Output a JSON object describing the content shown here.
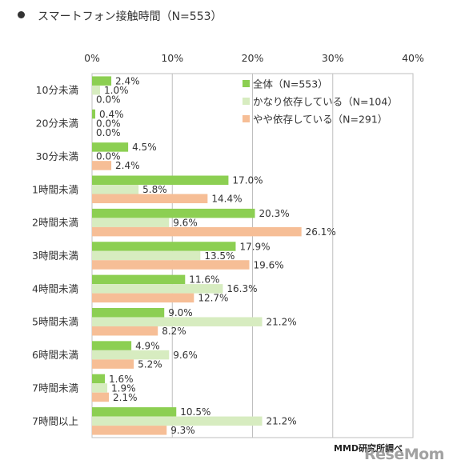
{
  "title": "スマートフォン接触時間（N=553）",
  "source": "MMD研究所調べ",
  "watermark": "ReseMom",
  "chart_data": {
    "type": "bar",
    "orientation": "horizontal",
    "title": "スマートフォン接触時間（N=553）",
    "xlim": [
      0,
      40
    ],
    "xticks": [
      "0%",
      "10%",
      "20%",
      "30%",
      "40%"
    ],
    "grid": true,
    "legend_position": "top-right",
    "categories": [
      "10分未満",
      "20分未満",
      "30分未満",
      "1時間未満",
      "2時間未満",
      "3時間未満",
      "4時間未満",
      "5時間未満",
      "6時間未満",
      "7時間未満",
      "7時間以上"
    ],
    "series": [
      {
        "name": "全体（N=553）",
        "color": "#8ccf52",
        "values": [
          2.4,
          0.4,
          4.5,
          17.0,
          20.3,
          17.9,
          11.6,
          9.0,
          4.9,
          1.6,
          10.5
        ]
      },
      {
        "name": "かなり依存している（N=104）",
        "color": "#d7ecc0",
        "values": [
          1.0,
          0.0,
          0.0,
          5.8,
          9.6,
          13.5,
          16.3,
          21.2,
          9.6,
          1.9,
          21.2
        ]
      },
      {
        "name": "やや依存している（N=291）",
        "color": "#f6be96",
        "values": [
          0.0,
          0.0,
          2.4,
          14.4,
          26.1,
          19.6,
          12.7,
          8.2,
          5.2,
          2.1,
          9.3
        ]
      }
    ]
  }
}
